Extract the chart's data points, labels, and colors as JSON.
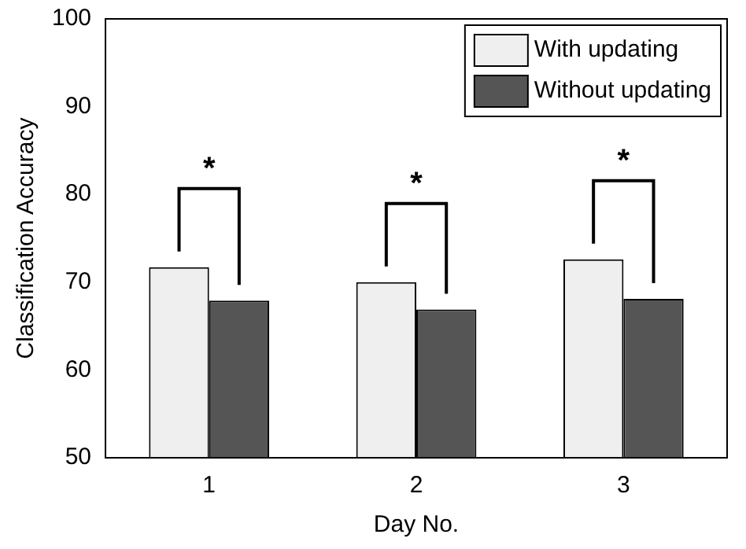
{
  "chart_data": {
    "type": "bar",
    "xlabel": "Day No.",
    "ylabel": "Classification Accuracy",
    "categories": [
      "1",
      "2",
      "3"
    ],
    "series": [
      {
        "name": "With updating",
        "color": "#efefef",
        "values": [
          71.7,
          70.0,
          72.6
        ]
      },
      {
        "name": "Without updating",
        "color": "#555555",
        "values": [
          67.9,
          66.9,
          68.1
        ]
      }
    ],
    "ylim": [
      50,
      100
    ],
    "yticks": [
      50,
      60,
      70,
      80,
      90,
      100
    ],
    "grid": false,
    "legend": "top right",
    "annotations": [
      "*",
      "*",
      "*"
    ]
  }
}
